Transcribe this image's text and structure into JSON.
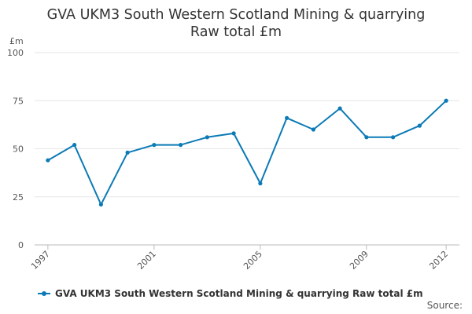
{
  "chart_data": {
    "type": "line",
    "title": "GVA UKM3 South Western Scotland Mining & quarrying Raw total £m",
    "title_lines": [
      "GVA UKM3 South Western Scotland Mining & quarrying",
      "Raw total £m"
    ],
    "ylabel": "£m",
    "xlabel": "",
    "x": [
      1997,
      1998,
      1999,
      2000,
      2001,
      2002,
      2003,
      2004,
      2005,
      2006,
      2007,
      2008,
      2009,
      2010,
      2011,
      2012
    ],
    "x_tick_labels": [
      "1997",
      "2001",
      "2005",
      "2009",
      "2012"
    ],
    "y_ticks": [
      0,
      25,
      50,
      75,
      100
    ],
    "ylim": [
      0,
      100
    ],
    "grid": true,
    "legend_position": "bottom-left",
    "series": [
      {
        "name": "GVA UKM3 South Western Scotland Mining & quarrying Raw total £m",
        "color": "#0b7ab6",
        "values": [
          44,
          52,
          21,
          48,
          52,
          52,
          56,
          58,
          32,
          66,
          60,
          71,
          56,
          56,
          62,
          75
        ]
      }
    ]
  },
  "source_label": "Source:"
}
